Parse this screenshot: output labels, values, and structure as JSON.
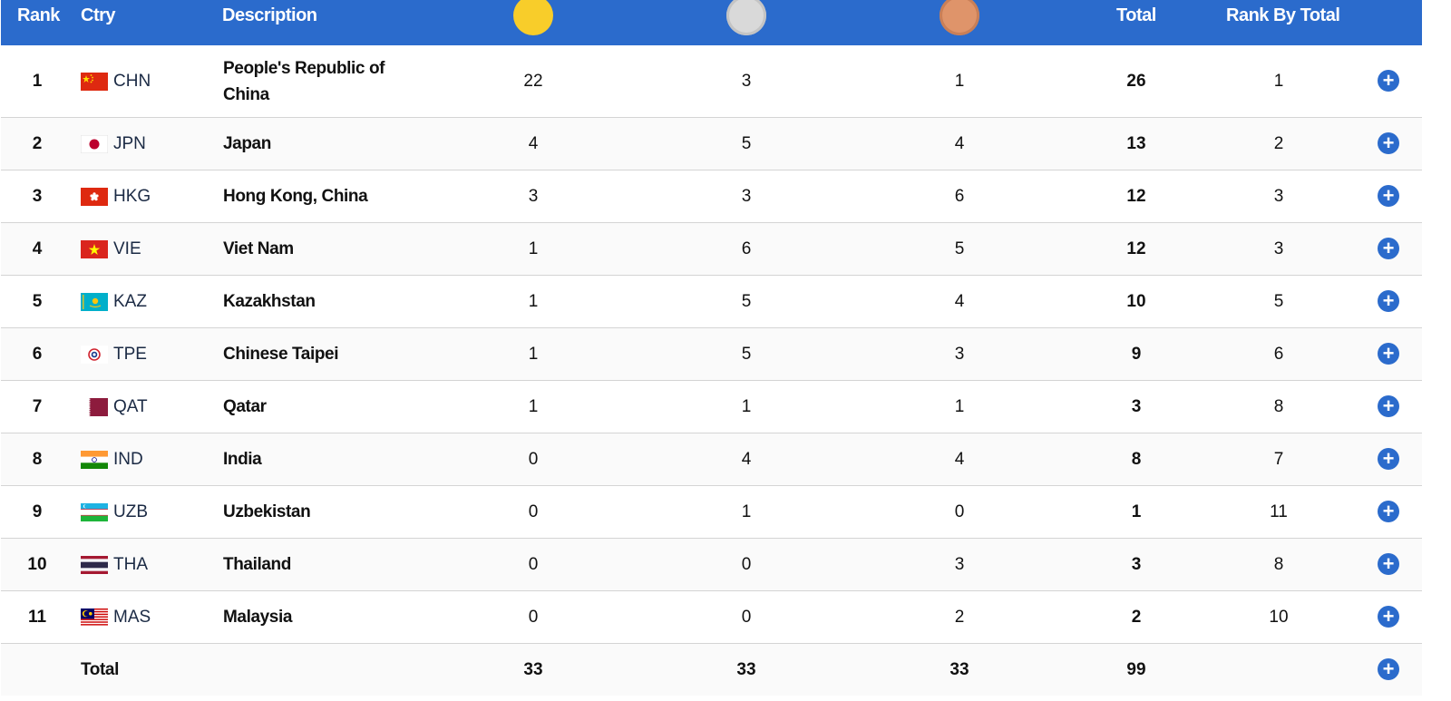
{
  "header": {
    "rank": "Rank",
    "ctry": "Ctry",
    "description": "Description",
    "gold_icon": "gold-medal-icon",
    "silver_icon": "silver-medal-icon",
    "bronze_icon": "bronze-medal-icon",
    "total": "Total",
    "rank_by_total": "Rank By Total"
  },
  "colors": {
    "header_bg": "#2b6bcc",
    "gold": "#f8cd2a",
    "silver": "#d9d9d9",
    "bronze": "#df946a",
    "expand_button": "#2b6bcc"
  },
  "rows": [
    {
      "rank": "1",
      "code": "CHN",
      "flag": "chn-flag-icon",
      "description": "People's Republic of China",
      "gold": "22",
      "silver": "3",
      "bronze": "1",
      "total": "26",
      "rank_by_total": "1"
    },
    {
      "rank": "2",
      "code": "JPN",
      "flag": "jpn-flag-icon",
      "description": "Japan",
      "gold": "4",
      "silver": "5",
      "bronze": "4",
      "total": "13",
      "rank_by_total": "2"
    },
    {
      "rank": "3",
      "code": "HKG",
      "flag": "hkg-flag-icon",
      "description": "Hong Kong, China",
      "gold": "3",
      "silver": "3",
      "bronze": "6",
      "total": "12",
      "rank_by_total": "3"
    },
    {
      "rank": "4",
      "code": "VIE",
      "flag": "vie-flag-icon",
      "description": "Viet Nam",
      "gold": "1",
      "silver": "6",
      "bronze": "5",
      "total": "12",
      "rank_by_total": "3"
    },
    {
      "rank": "5",
      "code": "KAZ",
      "flag": "kaz-flag-icon",
      "description": "Kazakhstan",
      "gold": "1",
      "silver": "5",
      "bronze": "4",
      "total": "10",
      "rank_by_total": "5"
    },
    {
      "rank": "6",
      "code": "TPE",
      "flag": "tpe-flag-icon",
      "description": "Chinese Taipei",
      "gold": "1",
      "silver": "5",
      "bronze": "3",
      "total": "9",
      "rank_by_total": "6"
    },
    {
      "rank": "7",
      "code": "QAT",
      "flag": "qat-flag-icon",
      "description": "Qatar",
      "gold": "1",
      "silver": "1",
      "bronze": "1",
      "total": "3",
      "rank_by_total": "8"
    },
    {
      "rank": "8",
      "code": "IND",
      "flag": "ind-flag-icon",
      "description": "India",
      "gold": "0",
      "silver": "4",
      "bronze": "4",
      "total": "8",
      "rank_by_total": "7"
    },
    {
      "rank": "9",
      "code": "UZB",
      "flag": "uzb-flag-icon",
      "description": "Uzbekistan",
      "gold": "0",
      "silver": "1",
      "bronze": "0",
      "total": "1",
      "rank_by_total": "11"
    },
    {
      "rank": "10",
      "code": "THA",
      "flag": "tha-flag-icon",
      "description": "Thailand",
      "gold": "0",
      "silver": "0",
      "bronze": "3",
      "total": "3",
      "rank_by_total": "8"
    },
    {
      "rank": "11",
      "code": "MAS",
      "flag": "mas-flag-icon",
      "description": "Malaysia",
      "gold": "0",
      "silver": "0",
      "bronze": "2",
      "total": "2",
      "rank_by_total": "10"
    }
  ],
  "totals": {
    "label": "Total",
    "gold": "33",
    "silver": "33",
    "bronze": "33",
    "total": "99"
  },
  "expand_icon": "plus-icon",
  "expand_label": "+"
}
